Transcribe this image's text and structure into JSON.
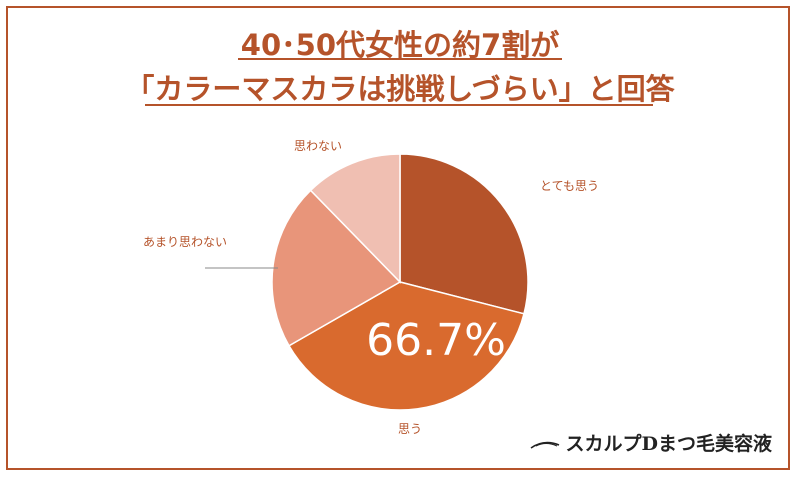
{
  "title": {
    "line1": "40･50代女性の約7割が",
    "line2": "「カラーマスカラは挑戦しづらい」と回答"
  },
  "chart_data": {
    "type": "pie",
    "labels": [
      "とても思う",
      "思う",
      "あまり思わない",
      "思わない"
    ],
    "values": [
      29.0,
      37.7,
      21.0,
      12.3
    ],
    "colors": [
      "#b5532a",
      "#d96a2e",
      "#e8957a",
      "#f0bfb2"
    ],
    "highlight_label": "66.7%"
  },
  "brand": {
    "logo_text": "スカルプDまつ毛美容液"
  }
}
